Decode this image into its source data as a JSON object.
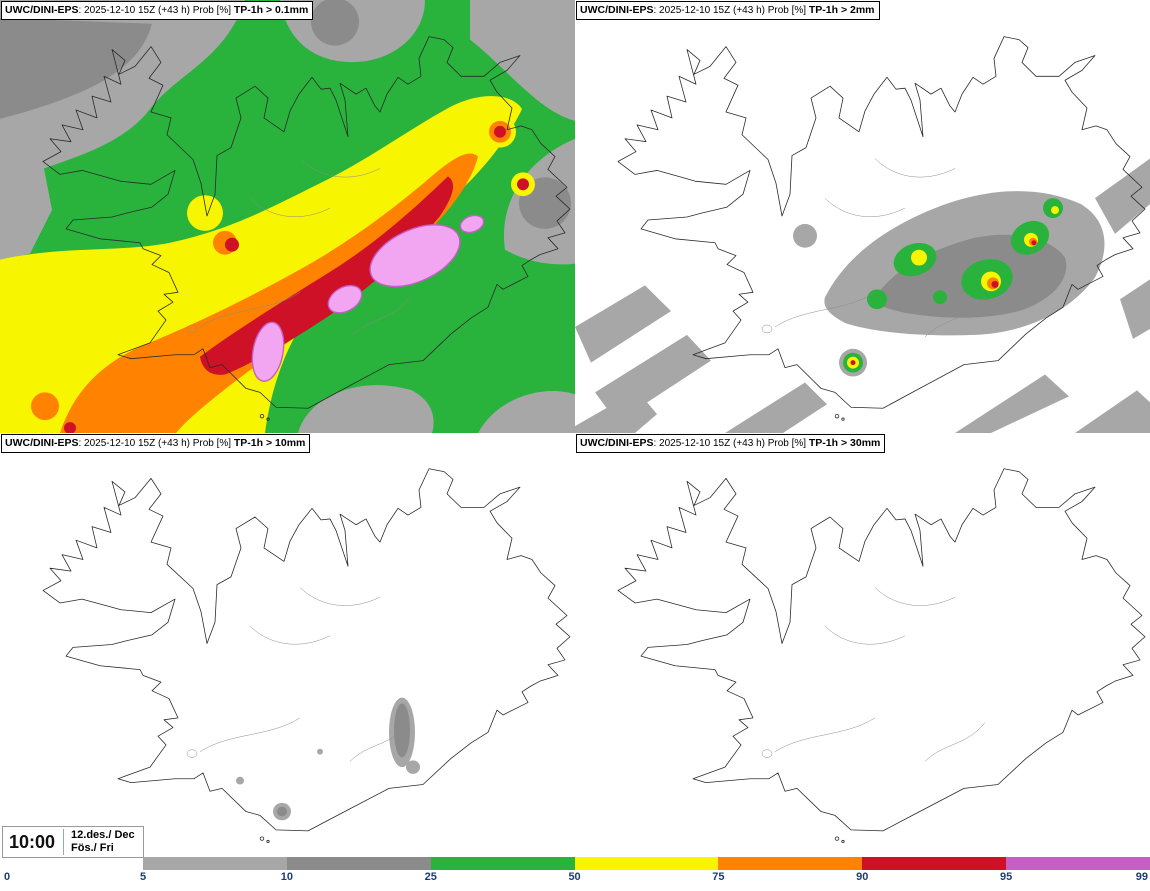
{
  "panels": [
    {
      "model": "UWC/DINI-EPS",
      "run": ": 2025-12-10 15Z (+43 h) Prob [%] ",
      "threshold": "TP-1h > 0.1mm"
    },
    {
      "model": "UWC/DINI-EPS",
      "run": ": 2025-12-10 15Z (+43 h) Prob [%] ",
      "threshold": "TP-1h > 2mm"
    },
    {
      "model": "UWC/DINI-EPS",
      "run": ": 2025-12-10 15Z (+43 h) Prob [%] ",
      "threshold": "TP-1h > 10mm"
    },
    {
      "model": "UWC/DINI-EPS",
      "run": ": 2025-12-10 15Z (+43 h) Prob [%] ",
      "threshold": "TP-1h > 30mm"
    }
  ],
  "clock": {
    "time": "10:00",
    "date": "12.des./ Dec",
    "day": "Fös./ Fri"
  },
  "legend": {
    "values": [
      "0",
      "5",
      "10",
      "25",
      "50",
      "75",
      "90",
      "95",
      "99"
    ],
    "colors": [
      "#a7a7a7",
      "#8b8b8b",
      "#29b33c",
      "#f8f500",
      "#ff8200",
      "#ce1126",
      "#c55ec5"
    ],
    "label_color": "#1c3e6e"
  }
}
